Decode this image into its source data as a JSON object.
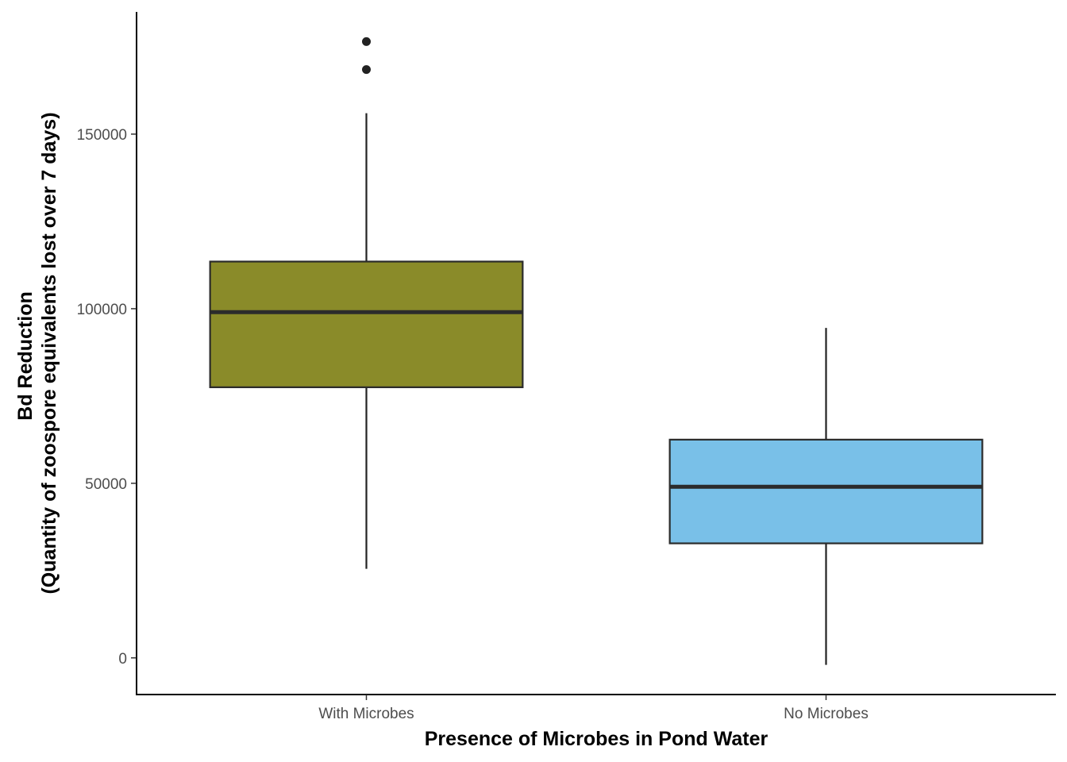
{
  "chart_data": {
    "type": "box",
    "title": "",
    "xlabel": "Presence of Microbes in Pond Water",
    "ylabel_line1": "Bd Reduction",
    "ylabel_line2": "(Quantity of zoospore equivalents lost over 7 days)",
    "ylim": [
      -10500,
      185000
    ],
    "yticks": [
      0,
      50000,
      100000,
      150000
    ],
    "ytick_labels": [
      "0",
      "50000",
      "100000",
      "150000"
    ],
    "grid": false,
    "legend": "none",
    "categories": [
      "With Microbes",
      "No Microbes"
    ],
    "boxes": [
      {
        "category": "With Microbes",
        "color": "#8a8b29",
        "whisker_low": 25500,
        "q1": 77500,
        "median": 99000,
        "q3": 113500,
        "whisker_high": 156000,
        "outliers": [
          176500,
          168500
        ]
      },
      {
        "category": "No Microbes",
        "color": "#79c0e8",
        "whisker_low": -2000,
        "q1": 32800,
        "median": 49000,
        "q3": 62500,
        "whisker_high": 94500,
        "outliers": []
      }
    ]
  }
}
